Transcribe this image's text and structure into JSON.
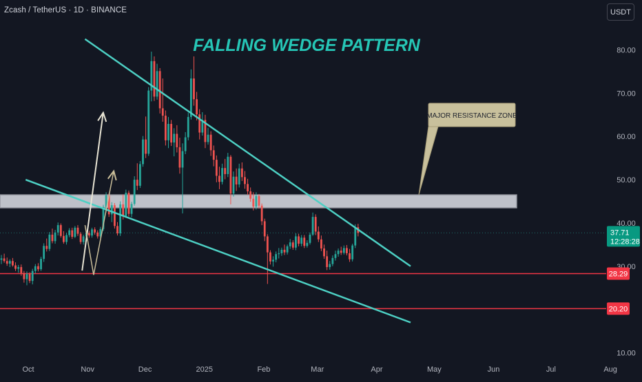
{
  "header": {
    "symbol_title": "Zcash / TetherUS · 1D · BINANCE",
    "currency_button": "USDT"
  },
  "colors": {
    "background": "#131722",
    "up_candle": "#26a69a",
    "down_candle": "#ef5350",
    "wedge_line": "#4dd0c4",
    "support_line": "#f23645",
    "resistance_zone_fill": "#d1d4dc",
    "arrow_primary": "#e8e4d4",
    "arrow_secondary": "#cbbf9a",
    "title_color": "#26c6b6",
    "callout_fill": "#c8c09c",
    "price_badge": "#089981",
    "level_badge": "#f23645"
  },
  "chart_data": {
    "type": "candlestick",
    "title": "FALLING WEDGE PATTERN",
    "xlabel": "",
    "ylabel": "",
    "ylim": [
      10,
      80
    ],
    "x_ticks": [
      "Oct",
      "Nov",
      "Dec",
      "2025",
      "Feb",
      "Mar",
      "Apr",
      "May",
      "Jun",
      "Jul",
      "Aug"
    ],
    "y_ticks": [
      "80.00",
      "70.00",
      "60.00",
      "50.00",
      "40.00",
      "30.00",
      "10.00"
    ],
    "grid": false,
    "current_price": {
      "value": 37.71,
      "label": "37.71",
      "countdown": "12:28:28"
    },
    "levels": [
      {
        "label": "28.29",
        "value": 28.29,
        "kind": "support"
      },
      {
        "label": "20.20",
        "value": 20.2,
        "kind": "support"
      }
    ],
    "resistance_zone": {
      "from": 43.5,
      "to": 46.5,
      "label": "MAJOR RESISTANCE ZONE"
    },
    "wedge": {
      "upper": [
        [
          39,
          82.5
        ],
        [
          209,
          30
        ]
      ],
      "lower": [
        [
          8,
          50
        ],
        [
          209,
          17
        ]
      ]
    },
    "projections": {
      "primary": [
        [
          37.5,
          29
        ],
        [
          48.5,
          65.5
        ]
      ],
      "secondary": [
        [
          39,
          39.5
        ],
        [
          43.5,
          28
        ],
        [
          54,
          52
        ]
      ]
    },
    "candles": [
      {
        "o": 31.5,
        "h": 32.6,
        "l": 30.5,
        "c": 31.8
      },
      {
        "o": 31.8,
        "h": 32.9,
        "l": 30.8,
        "c": 31.2
      },
      {
        "o": 31.2,
        "h": 32.0,
        "l": 30.1,
        "c": 30.6
      },
      {
        "o": 30.6,
        "h": 31.6,
        "l": 29.8,
        "c": 31.2
      },
      {
        "o": 31.2,
        "h": 31.9,
        "l": 29.9,
        "c": 30.2
      },
      {
        "o": 30.2,
        "h": 30.9,
        "l": 28.9,
        "c": 29.4
      },
      {
        "o": 29.4,
        "h": 30.3,
        "l": 28.5,
        "c": 29.8
      },
      {
        "o": 29.8,
        "h": 30.4,
        "l": 27.8,
        "c": 28.4
      },
      {
        "o": 28.4,
        "h": 28.9,
        "l": 26.2,
        "c": 27.0
      },
      {
        "o": 27.0,
        "h": 28.8,
        "l": 25.6,
        "c": 28.2
      },
      {
        "o": 28.2,
        "h": 28.6,
        "l": 26.1,
        "c": 26.6
      },
      {
        "o": 26.6,
        "h": 29.4,
        "l": 25.8,
        "c": 28.9
      },
      {
        "o": 28.9,
        "h": 30.5,
        "l": 28.3,
        "c": 30.0
      },
      {
        "o": 30.0,
        "h": 30.7,
        "l": 28.8,
        "c": 29.3
      },
      {
        "o": 29.3,
        "h": 32.2,
        "l": 28.9,
        "c": 31.7
      },
      {
        "o": 31.7,
        "h": 35.3,
        "l": 31.0,
        "c": 34.7
      },
      {
        "o": 34.7,
        "h": 36.4,
        "l": 33.4,
        "c": 34.0
      },
      {
        "o": 34.0,
        "h": 37.9,
        "l": 33.5,
        "c": 37.3
      },
      {
        "o": 37.3,
        "h": 38.7,
        "l": 35.3,
        "c": 35.8
      },
      {
        "o": 35.8,
        "h": 38.4,
        "l": 35.2,
        "c": 37.8
      },
      {
        "o": 37.8,
        "h": 40.1,
        "l": 37.1,
        "c": 39.5
      },
      {
        "o": 39.5,
        "h": 39.9,
        "l": 36.6,
        "c": 37.0
      },
      {
        "o": 37.0,
        "h": 38.1,
        "l": 35.2,
        "c": 35.6
      },
      {
        "o": 35.6,
        "h": 37.7,
        "l": 35.0,
        "c": 37.2
      },
      {
        "o": 37.2,
        "h": 38.8,
        "l": 36.7,
        "c": 38.3
      },
      {
        "o": 38.3,
        "h": 38.9,
        "l": 36.3,
        "c": 36.8
      },
      {
        "o": 36.8,
        "h": 39.3,
        "l": 36.5,
        "c": 38.9
      },
      {
        "o": 38.9,
        "h": 39.5,
        "l": 37.0,
        "c": 37.5
      },
      {
        "o": 37.5,
        "h": 37.9,
        "l": 35.1,
        "c": 35.6
      },
      {
        "o": 35.6,
        "h": 37.3,
        "l": 35.0,
        "c": 36.9
      },
      {
        "o": 36.9,
        "h": 38.2,
        "l": 36.2,
        "c": 37.7
      },
      {
        "o": 37.7,
        "h": 38.2,
        "l": 36.6,
        "c": 37.1
      },
      {
        "o": 37.1,
        "h": 38.9,
        "l": 36.6,
        "c": 38.5
      },
      {
        "o": 38.5,
        "h": 39.0,
        "l": 37.3,
        "c": 37.8
      },
      {
        "o": 37.8,
        "h": 38.3,
        "l": 36.4,
        "c": 36.9
      },
      {
        "o": 36.9,
        "h": 39.1,
        "l": 36.5,
        "c": 38.6
      },
      {
        "o": 38.6,
        "h": 44.2,
        "l": 38.1,
        "c": 43.7
      },
      {
        "o": 43.7,
        "h": 47.1,
        "l": 42.4,
        "c": 46.4
      },
      {
        "o": 46.4,
        "h": 46.9,
        "l": 41.4,
        "c": 42.0
      },
      {
        "o": 42.0,
        "h": 44.8,
        "l": 40.2,
        "c": 44.1
      },
      {
        "o": 44.1,
        "h": 44.6,
        "l": 38.7,
        "c": 39.3
      },
      {
        "o": 39.3,
        "h": 40.2,
        "l": 37.1,
        "c": 37.6
      },
      {
        "o": 37.6,
        "h": 45.0,
        "l": 37.0,
        "c": 44.3
      },
      {
        "o": 44.3,
        "h": 46.6,
        "l": 40.8,
        "c": 41.6
      },
      {
        "o": 41.6,
        "h": 47.7,
        "l": 41.2,
        "c": 47.0
      },
      {
        "o": 47.0,
        "h": 47.5,
        "l": 41.5,
        "c": 42.1
      },
      {
        "o": 42.1,
        "h": 44.9,
        "l": 41.3,
        "c": 44.4
      },
      {
        "o": 44.4,
        "h": 50.8,
        "l": 44.0,
        "c": 50.0
      },
      {
        "o": 50.0,
        "h": 53.8,
        "l": 47.6,
        "c": 48.6
      },
      {
        "o": 48.6,
        "h": 54.3,
        "l": 48.1,
        "c": 53.6
      },
      {
        "o": 53.6,
        "h": 60.1,
        "l": 53.0,
        "c": 59.3
      },
      {
        "o": 59.3,
        "h": 64.6,
        "l": 55.0,
        "c": 56.0
      },
      {
        "o": 56.0,
        "h": 71.4,
        "l": 55.5,
        "c": 70.6
      },
      {
        "o": 70.6,
        "h": 79.6,
        "l": 68.1,
        "c": 77.4
      },
      {
        "o": 77.4,
        "h": 78.5,
        "l": 68.2,
        "c": 69.2
      },
      {
        "o": 69.2,
        "h": 76.8,
        "l": 68.5,
        "c": 75.1
      },
      {
        "o": 75.1,
        "h": 75.8,
        "l": 65.3,
        "c": 66.5
      },
      {
        "o": 66.5,
        "h": 73.4,
        "l": 63.4,
        "c": 64.8
      },
      {
        "o": 64.8,
        "h": 66.0,
        "l": 57.9,
        "c": 59.1
      },
      {
        "o": 59.1,
        "h": 64.5,
        "l": 57.3,
        "c": 62.9
      },
      {
        "o": 62.9,
        "h": 63.8,
        "l": 57.8,
        "c": 58.6
      },
      {
        "o": 58.6,
        "h": 61.9,
        "l": 55.4,
        "c": 60.6
      },
      {
        "o": 60.6,
        "h": 62.6,
        "l": 56.3,
        "c": 57.5
      },
      {
        "o": 57.5,
        "h": 59.7,
        "l": 51.4,
        "c": 52.8
      },
      {
        "o": 52.8,
        "h": 58.4,
        "l": 42.2,
        "c": 56.6
      },
      {
        "o": 56.6,
        "h": 61.0,
        "l": 55.9,
        "c": 59.8
      },
      {
        "o": 59.8,
        "h": 65.5,
        "l": 59.1,
        "c": 64.5
      },
      {
        "o": 64.5,
        "h": 75.5,
        "l": 63.9,
        "c": 73.4
      },
      {
        "o": 73.4,
        "h": 78.5,
        "l": 67.1,
        "c": 68.6
      },
      {
        "o": 68.6,
        "h": 70.3,
        "l": 63.7,
        "c": 65.1
      },
      {
        "o": 65.1,
        "h": 66.3,
        "l": 59.3,
        "c": 60.9
      },
      {
        "o": 60.9,
        "h": 65.6,
        "l": 60.2,
        "c": 63.8
      },
      {
        "o": 63.8,
        "h": 65.0,
        "l": 57.3,
        "c": 58.7
      },
      {
        "o": 58.7,
        "h": 62.0,
        "l": 58.1,
        "c": 60.4
      },
      {
        "o": 60.4,
        "h": 61.2,
        "l": 55.5,
        "c": 56.8
      },
      {
        "o": 56.8,
        "h": 57.9,
        "l": 53.1,
        "c": 54.6
      },
      {
        "o": 54.6,
        "h": 55.6,
        "l": 49.4,
        "c": 50.9
      },
      {
        "o": 50.9,
        "h": 53.0,
        "l": 47.8,
        "c": 49.5
      },
      {
        "o": 49.5,
        "h": 53.7,
        "l": 48.9,
        "c": 52.7
      },
      {
        "o": 52.7,
        "h": 54.8,
        "l": 50.1,
        "c": 51.3
      },
      {
        "o": 51.3,
        "h": 56.2,
        "l": 50.6,
        "c": 55.3
      },
      {
        "o": 55.3,
        "h": 55.7,
        "l": 44.3,
        "c": 46.8
      },
      {
        "o": 46.8,
        "h": 51.9,
        "l": 46.1,
        "c": 50.7
      },
      {
        "o": 50.7,
        "h": 52.6,
        "l": 47.4,
        "c": 48.9
      },
      {
        "o": 48.9,
        "h": 53.7,
        "l": 48.2,
        "c": 52.6
      },
      {
        "o": 52.6,
        "h": 54.0,
        "l": 49.7,
        "c": 50.6
      },
      {
        "o": 50.6,
        "h": 52.0,
        "l": 47.9,
        "c": 49.0
      },
      {
        "o": 49.0,
        "h": 50.2,
        "l": 46.5,
        "c": 47.3
      },
      {
        "o": 47.3,
        "h": 48.2,
        "l": 44.9,
        "c": 45.6
      },
      {
        "o": 45.6,
        "h": 47.1,
        "l": 42.9,
        "c": 43.8
      },
      {
        "o": 43.8,
        "h": 47.1,
        "l": 43.1,
        "c": 46.2
      },
      {
        "o": 46.2,
        "h": 46.7,
        "l": 43.3,
        "c": 44.0
      },
      {
        "o": 44.0,
        "h": 44.5,
        "l": 39.5,
        "c": 40.4
      },
      {
        "o": 40.4,
        "h": 41.0,
        "l": 35.8,
        "c": 36.9
      },
      {
        "o": 36.9,
        "h": 37.4,
        "l": 25.9,
        "c": 33.2
      },
      {
        "o": 33.2,
        "h": 33.7,
        "l": 30.4,
        "c": 31.1
      },
      {
        "o": 31.1,
        "h": 32.3,
        "l": 29.9,
        "c": 31.5
      },
      {
        "o": 31.5,
        "h": 33.4,
        "l": 30.9,
        "c": 32.8
      },
      {
        "o": 32.8,
        "h": 34.2,
        "l": 31.8,
        "c": 33.0
      },
      {
        "o": 33.0,
        "h": 34.3,
        "l": 32.4,
        "c": 33.8
      },
      {
        "o": 33.8,
        "h": 35.0,
        "l": 32.6,
        "c": 33.2
      },
      {
        "o": 33.2,
        "h": 35.0,
        "l": 32.7,
        "c": 34.6
      },
      {
        "o": 34.6,
        "h": 36.3,
        "l": 34.0,
        "c": 35.5
      },
      {
        "o": 35.5,
        "h": 36.0,
        "l": 33.8,
        "c": 34.3
      },
      {
        "o": 34.3,
        "h": 37.6,
        "l": 33.7,
        "c": 36.9
      },
      {
        "o": 36.9,
        "h": 37.5,
        "l": 34.6,
        "c": 35.2
      },
      {
        "o": 35.2,
        "h": 37.2,
        "l": 34.6,
        "c": 36.6
      },
      {
        "o": 36.6,
        "h": 37.2,
        "l": 34.2,
        "c": 34.7
      },
      {
        "o": 34.7,
        "h": 36.0,
        "l": 34.3,
        "c": 35.4
      },
      {
        "o": 35.4,
        "h": 37.8,
        "l": 35.0,
        "c": 37.3
      },
      {
        "o": 37.3,
        "h": 42.4,
        "l": 37.0,
        "c": 41.4
      },
      {
        "o": 41.4,
        "h": 42.0,
        "l": 37.2,
        "c": 38.0
      },
      {
        "o": 38.0,
        "h": 39.2,
        "l": 35.6,
        "c": 36.2
      },
      {
        "o": 36.2,
        "h": 37.1,
        "l": 33.5,
        "c": 34.1
      },
      {
        "o": 34.1,
        "h": 35.0,
        "l": 31.7,
        "c": 32.3
      },
      {
        "o": 32.3,
        "h": 33.6,
        "l": 29.1,
        "c": 29.8
      },
      {
        "o": 29.8,
        "h": 31.2,
        "l": 29.2,
        "c": 30.5
      },
      {
        "o": 30.5,
        "h": 32.5,
        "l": 30.0,
        "c": 31.9
      },
      {
        "o": 31.9,
        "h": 33.6,
        "l": 31.3,
        "c": 32.8
      },
      {
        "o": 32.8,
        "h": 34.1,
        "l": 32.2,
        "c": 33.6
      },
      {
        "o": 33.6,
        "h": 34.5,
        "l": 32.6,
        "c": 33.1
      },
      {
        "o": 33.1,
        "h": 34.8,
        "l": 32.7,
        "c": 34.2
      },
      {
        "o": 34.2,
        "h": 34.9,
        "l": 32.5,
        "c": 33.0
      },
      {
        "o": 33.0,
        "h": 34.0,
        "l": 31.0,
        "c": 31.6
      },
      {
        "o": 31.6,
        "h": 35.2,
        "l": 31.1,
        "c": 34.8
      },
      {
        "o": 34.8,
        "h": 39.7,
        "l": 34.2,
        "c": 39.0
      },
      {
        "o": 39.0,
        "h": 39.8,
        "l": 36.9,
        "c": 37.7
      }
    ]
  }
}
